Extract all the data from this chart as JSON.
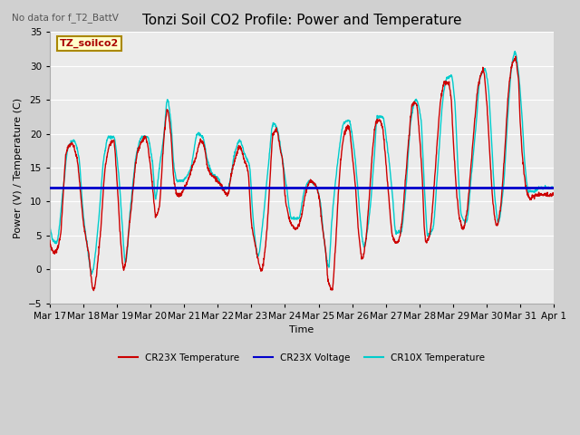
{
  "title": "Tonzi Soil CO2 Profile: Power and Temperature",
  "no_data_text": "No data for f_T2_BattV",
  "ylabel": "Power (V) / Temperature (C)",
  "xlabel": "Time",
  "ylim": [
    -5,
    35
  ],
  "yticks": [
    -5,
    0,
    5,
    10,
    15,
    20,
    25,
    30,
    35
  ],
  "voltage_line": 12.0,
  "voltage_color": "#0000cc",
  "cr23x_color": "#cc0000",
  "cr10x_color": "#00cccc",
  "legend_labels": [
    "CR23X Temperature",
    "CR23X Voltage",
    "CR10X Temperature"
  ],
  "box_label": "TZ_soilco2",
  "box_facecolor": "#ffffcc",
  "box_edgecolor": "#aa8800",
  "plot_bg_color": "#ebebeb",
  "fig_bg_color": "#d0d0d0",
  "title_fontsize": 11,
  "label_fontsize": 8,
  "tick_fontsize": 7.5,
  "tick_labels": [
    "Mar 17",
    "Mar 18",
    "Mar 19",
    "Mar 20",
    "Mar 21",
    "Mar 22",
    "Mar 23",
    "Mar 24",
    "Mar 25",
    "Mar 26",
    "Mar 27",
    "Mar 28",
    "Mar 29",
    "Mar 30",
    "Mar 31",
    "Apr 1"
  ]
}
